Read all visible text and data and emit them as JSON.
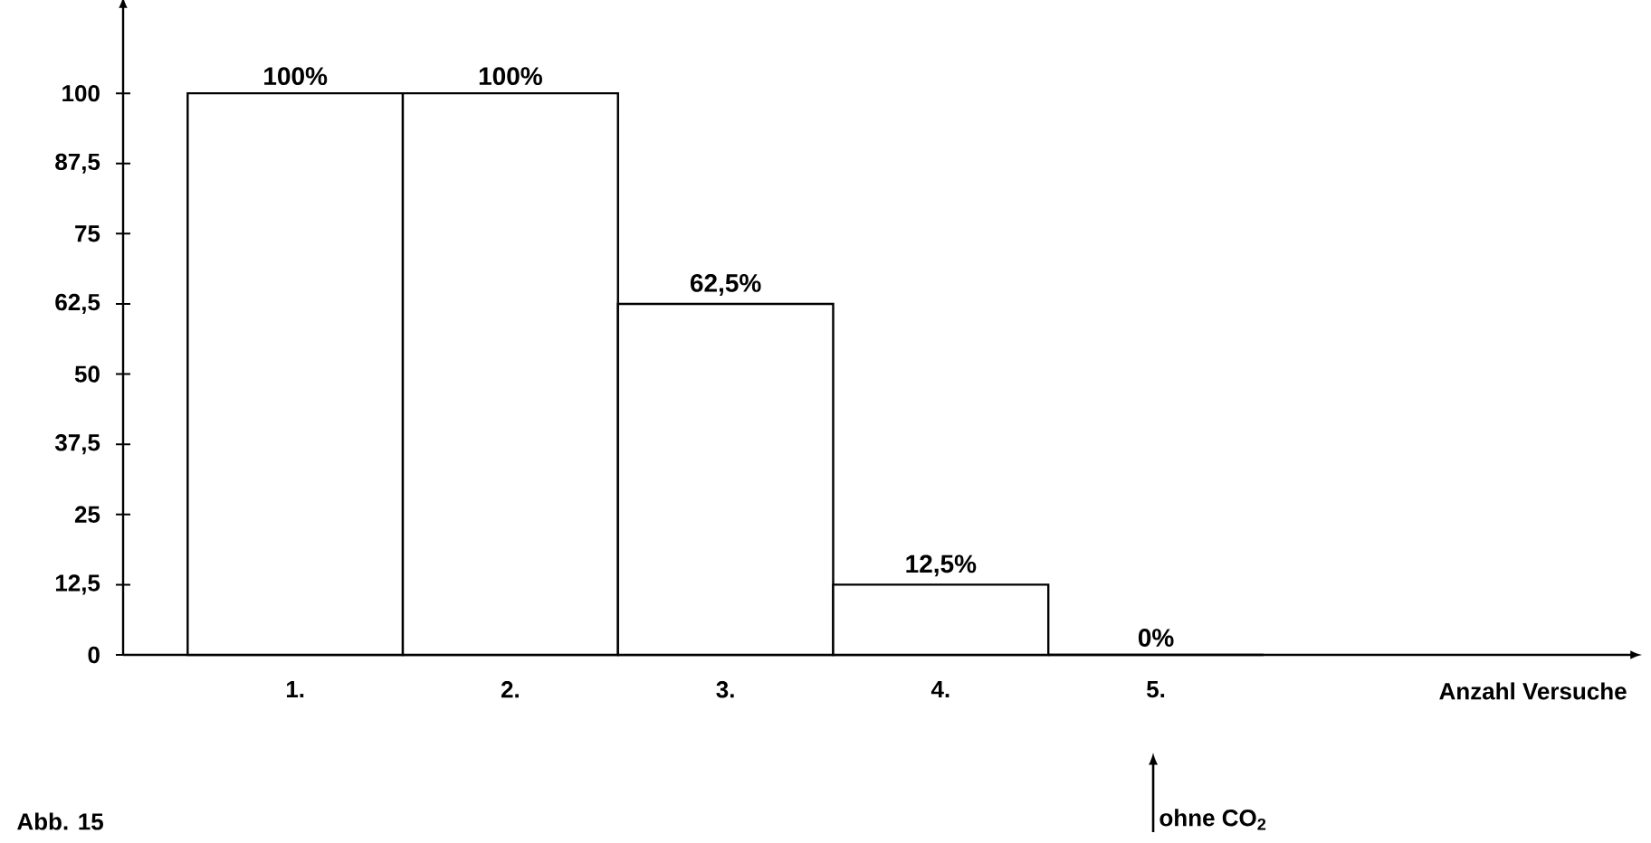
{
  "chart_data": {
    "type": "bar",
    "categories": [
      "1.",
      "2.",
      "3.",
      "4.",
      "5."
    ],
    "values": [
      100,
      100,
      62.5,
      12.5,
      0
    ],
    "value_labels": [
      "100%",
      "100%",
      "62,5%",
      "12,5%",
      "0%"
    ],
    "color": "#ffffff",
    "ylim": [
      0,
      115
    ],
    "yticks": [
      0,
      {
        "value": 12.5,
        "label": "12,5"
      },
      25,
      {
        "value": 37.5,
        "label": "37,5"
      },
      50,
      {
        "value": 62.5,
        "label": "62,5"
      },
      75,
      {
        "value": 87.5,
        "label": "87,5"
      },
      100
    ],
    "annotations": [
      "Abb. 15",
      "ohne CO$_{2}$",
      "Anzahl Versuche"
    ]
  }
}
